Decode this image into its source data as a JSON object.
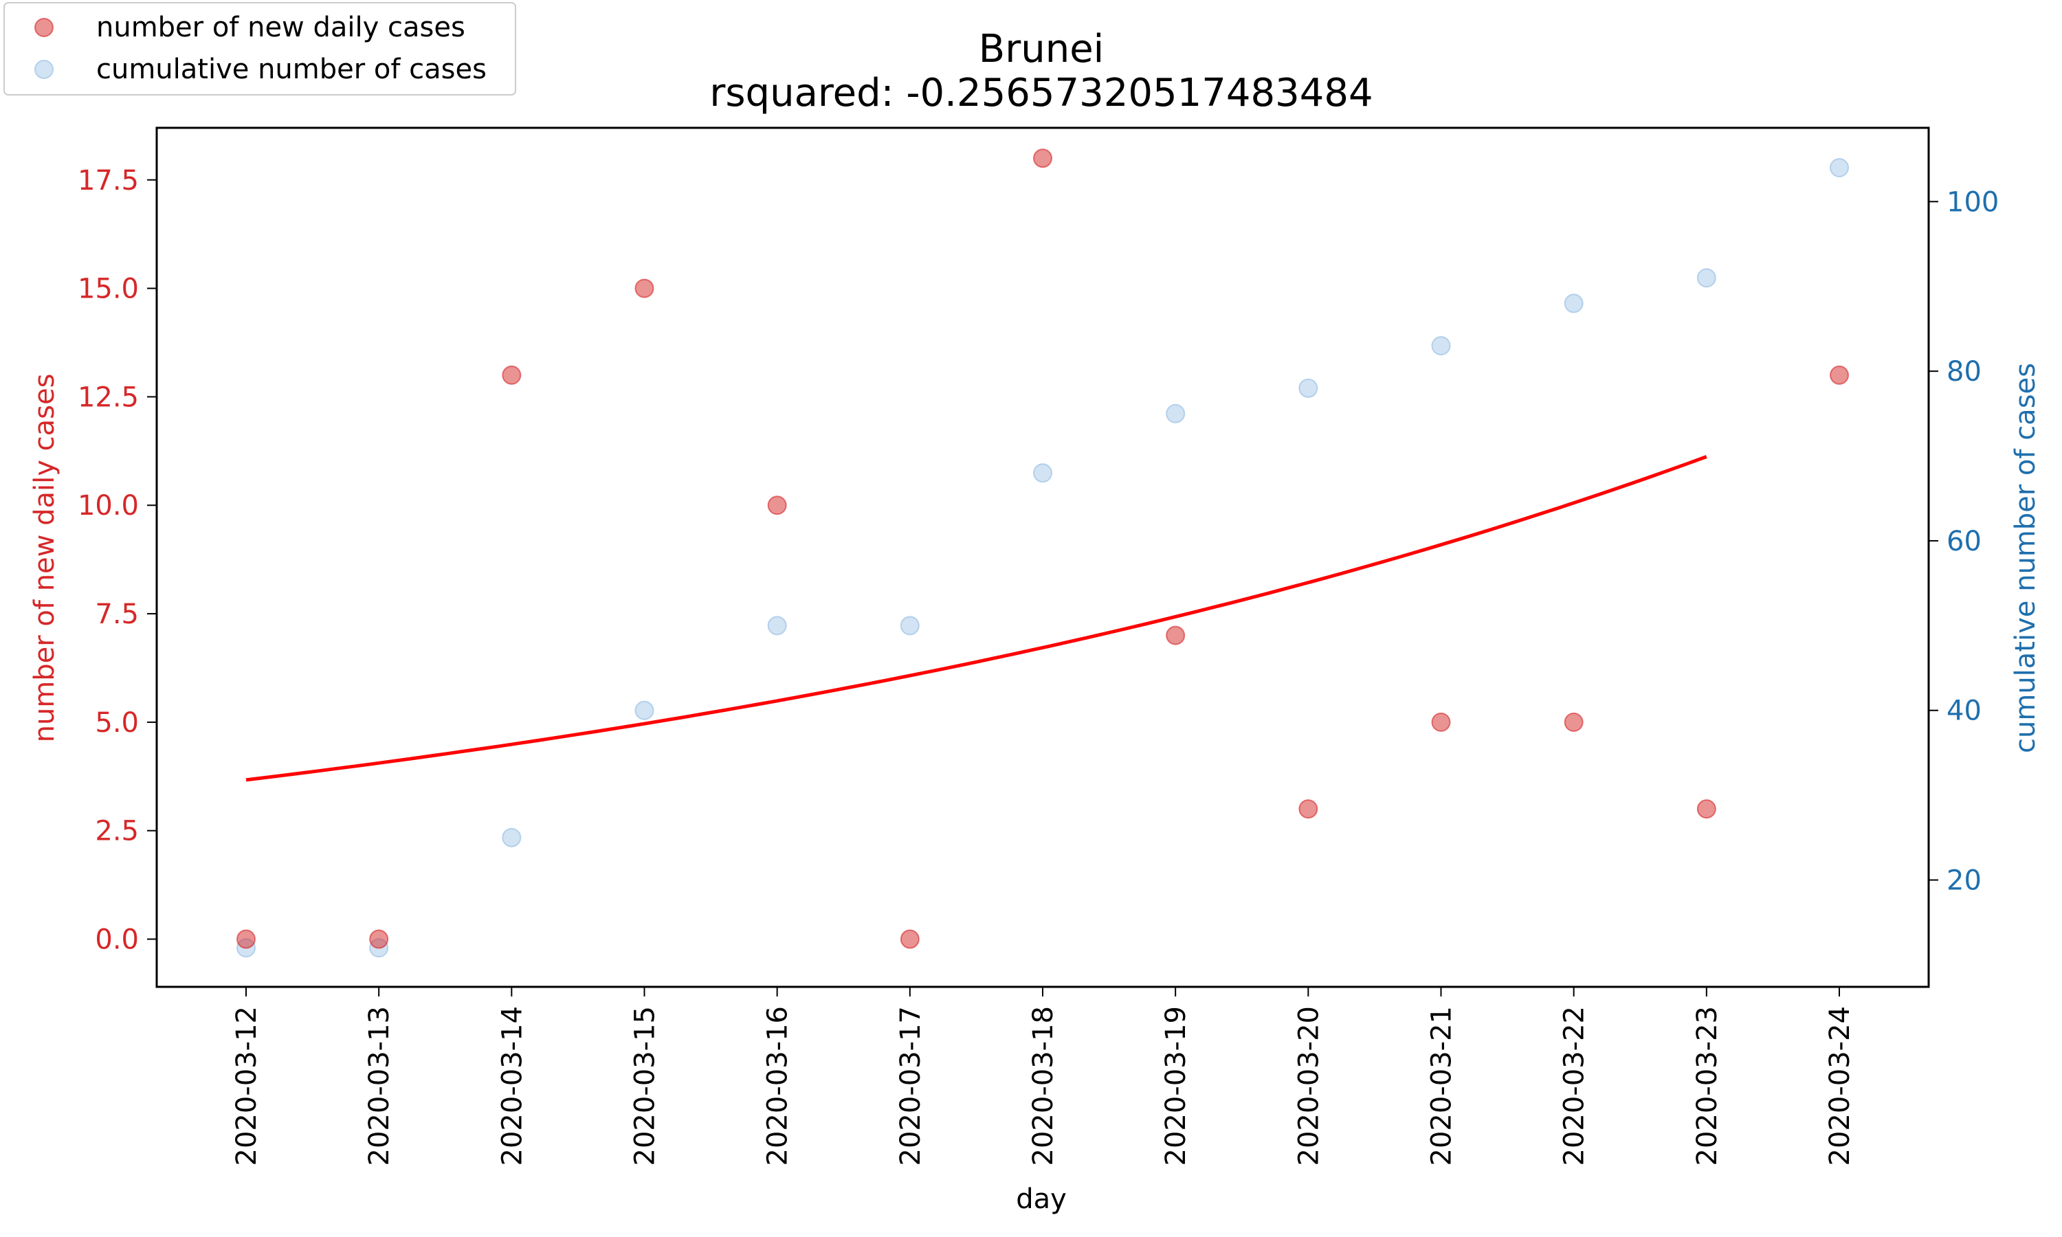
{
  "chart_data": {
    "type": "scatter",
    "title": "Brunei",
    "subtitle": "rsquared: -0.25657320517483484",
    "xlabel": "day",
    "ylabel_left": "number of new daily cases",
    "ylabel_right": "cumulative number of cases",
    "categories": [
      "2020-03-12",
      "2020-03-13",
      "2020-03-14",
      "2020-03-15",
      "2020-03-16",
      "2020-03-17",
      "2020-03-18",
      "2020-03-19",
      "2020-03-20",
      "2020-03-21",
      "2020-03-22",
      "2020-03-23",
      "2020-03-24"
    ],
    "ylim_left": [
      -1.1,
      18.7
    ],
    "ylim_right": [
      7.4,
      108.7
    ],
    "yticks_left": [
      0.0,
      2.5,
      5.0,
      7.5,
      10.0,
      12.5,
      15.0,
      17.5
    ],
    "yticks_left_labels": [
      "0.0",
      "2.5",
      "5.0",
      "7.5",
      "10.0",
      "12.5",
      "15.0",
      "17.5"
    ],
    "yticks_right": [
      20,
      40,
      60,
      80,
      100
    ],
    "yticks_right_labels": [
      "20",
      "40",
      "60",
      "80",
      "100"
    ],
    "series": [
      {
        "name": "number of new daily cases",
        "axis": "left",
        "kind": "scatter",
        "color": "#d62728",
        "values": [
          0,
          0,
          13,
          15,
          10,
          0,
          18,
          7,
          3,
          5,
          5,
          3,
          13
        ]
      },
      {
        "name": "cumulative number of cases",
        "axis": "right",
        "kind": "scatter",
        "color": "#a6c8e8",
        "values": [
          12,
          12,
          25,
          40,
          50,
          50,
          68,
          75,
          78,
          83,
          88,
          91,
          104
        ]
      },
      {
        "axis": "left",
        "kind": "line",
        "color": "#ff0000",
        "x_start": 0,
        "x_end": 11,
        "fit_start": 3.67,
        "fit_end": 11.12
      }
    ],
    "legend_placement": "top-left",
    "grid": false
  }
}
